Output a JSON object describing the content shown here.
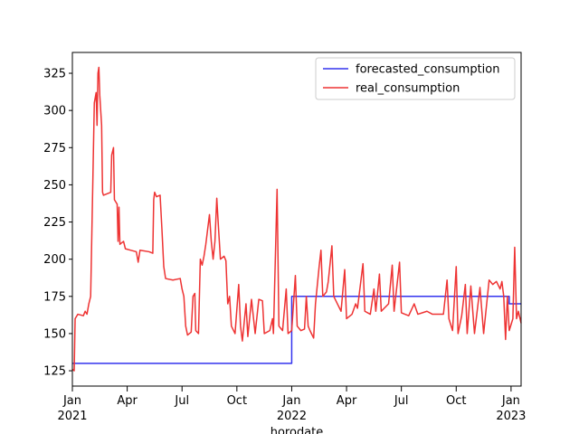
{
  "chart_data": {
    "type": "line",
    "x_label": "horodate",
    "xlim": [
      0,
      24.55
    ],
    "xticks": [
      {
        "value": 0,
        "label": "Jan\n2021"
      },
      {
        "value": 3,
        "label": "Apr"
      },
      {
        "value": 6,
        "label": "Jul"
      },
      {
        "value": 9,
        "label": "Oct"
      },
      {
        "value": 12,
        "label": "Jan\n2022"
      },
      {
        "value": 15,
        "label": "Apr"
      },
      {
        "value": 18,
        "label": "Jul"
      },
      {
        "value": 21,
        "label": "Oct"
      },
      {
        "value": 24,
        "label": "Jan\n2023"
      }
    ],
    "ylim": [
      114.7,
      339
    ],
    "yticks": [
      125,
      150,
      175,
      200,
      225,
      250,
      275,
      300,
      325
    ],
    "legend": "upper right",
    "series": [
      {
        "name": "forecasted_consumption",
        "color": "#3333ee",
        "x": [
          0,
          12,
          12,
          23.9,
          23.9,
          24.55
        ],
        "values": [
          130,
          130,
          175,
          175,
          170,
          170
        ]
      },
      {
        "name": "real_consumption",
        "color": "#ee3333",
        "x": [
          0,
          0.1,
          0.15,
          0.3,
          0.6,
          0.7,
          0.8,
          0.9,
          1.0,
          1.1,
          1.2,
          1.3,
          1.35,
          1.4,
          1.45,
          1.5,
          1.6,
          1.65,
          1.7,
          1.9,
          2.1,
          2.15,
          2.25,
          2.3,
          2.45,
          2.5,
          2.55,
          2.6,
          2.8,
          2.9,
          3.2,
          3.5,
          3.6,
          3.7,
          4.2,
          4.4,
          4.45,
          4.5,
          4.6,
          4.8,
          4.9,
          5.0,
          5.1,
          5.5,
          5.9,
          6.0,
          6.1,
          6.2,
          6.3,
          6.5,
          6.6,
          6.7,
          6.75,
          6.9,
          7.0,
          7.1,
          7.2,
          7.3,
          7.5,
          7.6,
          7.7,
          7.8,
          7.9,
          8.0,
          8.1,
          8.3,
          8.4,
          8.5,
          8.6,
          8.7,
          8.9,
          9.1,
          9.2,
          9.3,
          9.5,
          9.6,
          9.8,
          10.0,
          10.2,
          10.4,
          10.5,
          10.8,
          10.95,
          11.0,
          11.2,
          11.3,
          11.5,
          11.7,
          11.8,
          12.0,
          12.2,
          12.3,
          12.5,
          12.7,
          12.8,
          12.9,
          13.0,
          13.2,
          13.3,
          13.5,
          13.6,
          13.7,
          13.9,
          14.0,
          14.2,
          14.3,
          14.5,
          14.7,
          14.9,
          15.0,
          15.3,
          15.5,
          15.6,
          15.9,
          16.0,
          16.3,
          16.5,
          16.6,
          16.8,
          16.9,
          17.3,
          17.5,
          17.6,
          17.9,
          18.0,
          18.4,
          18.7,
          18.9,
          19.4,
          19.7,
          20.3,
          20.5,
          20.6,
          20.8,
          21.0,
          21.1,
          21.3,
          21.5,
          21.6,
          21.8,
          22.0,
          22.3,
          22.5,
          22.8,
          23.0,
          23.2,
          23.4,
          23.5,
          23.6,
          23.7,
          23.8,
          23.9,
          24.1,
          24.2,
          24.3,
          24.4,
          24.55
        ],
        "values": [
          126,
          125,
          160,
          163,
          162,
          165,
          163,
          170,
          175,
          240,
          305,
          312,
          290,
          325,
          329,
          310,
          290,
          245,
          243,
          244,
          245,
          270,
          275,
          240,
          237,
          212,
          235,
          210,
          212,
          207,
          206,
          205,
          198,
          206,
          205,
          204,
          240,
          245,
          242,
          243,
          220,
          195,
          187,
          186,
          187,
          180,
          175,
          155,
          149,
          151,
          175,
          177,
          152,
          150,
          200,
          196,
          202,
          210,
          230,
          212,
          200,
          212,
          241,
          220,
          200,
          202,
          199,
          170,
          175,
          155,
          150,
          183,
          155,
          145,
          170,
          148,
          173,
          150,
          173,
          172,
          150,
          152,
          160,
          150,
          247,
          155,
          152,
          180,
          150,
          152,
          189,
          155,
          152,
          153,
          175,
          155,
          152,
          147,
          170,
          195,
          206,
          175,
          178,
          185,
          209,
          175,
          170,
          165,
          193,
          160,
          163,
          170,
          167,
          197,
          165,
          163,
          180,
          165,
          190,
          165,
          170,
          196,
          165,
          198,
          164,
          162,
          170,
          163,
          165,
          163,
          163,
          186,
          160,
          152,
          195,
          150,
          162,
          183,
          150,
          182,
          150,
          181,
          150,
          186,
          183,
          185,
          180,
          185,
          175,
          146,
          175,
          152,
          160,
          208,
          160,
          165,
          157
        ]
      }
    ]
  }
}
